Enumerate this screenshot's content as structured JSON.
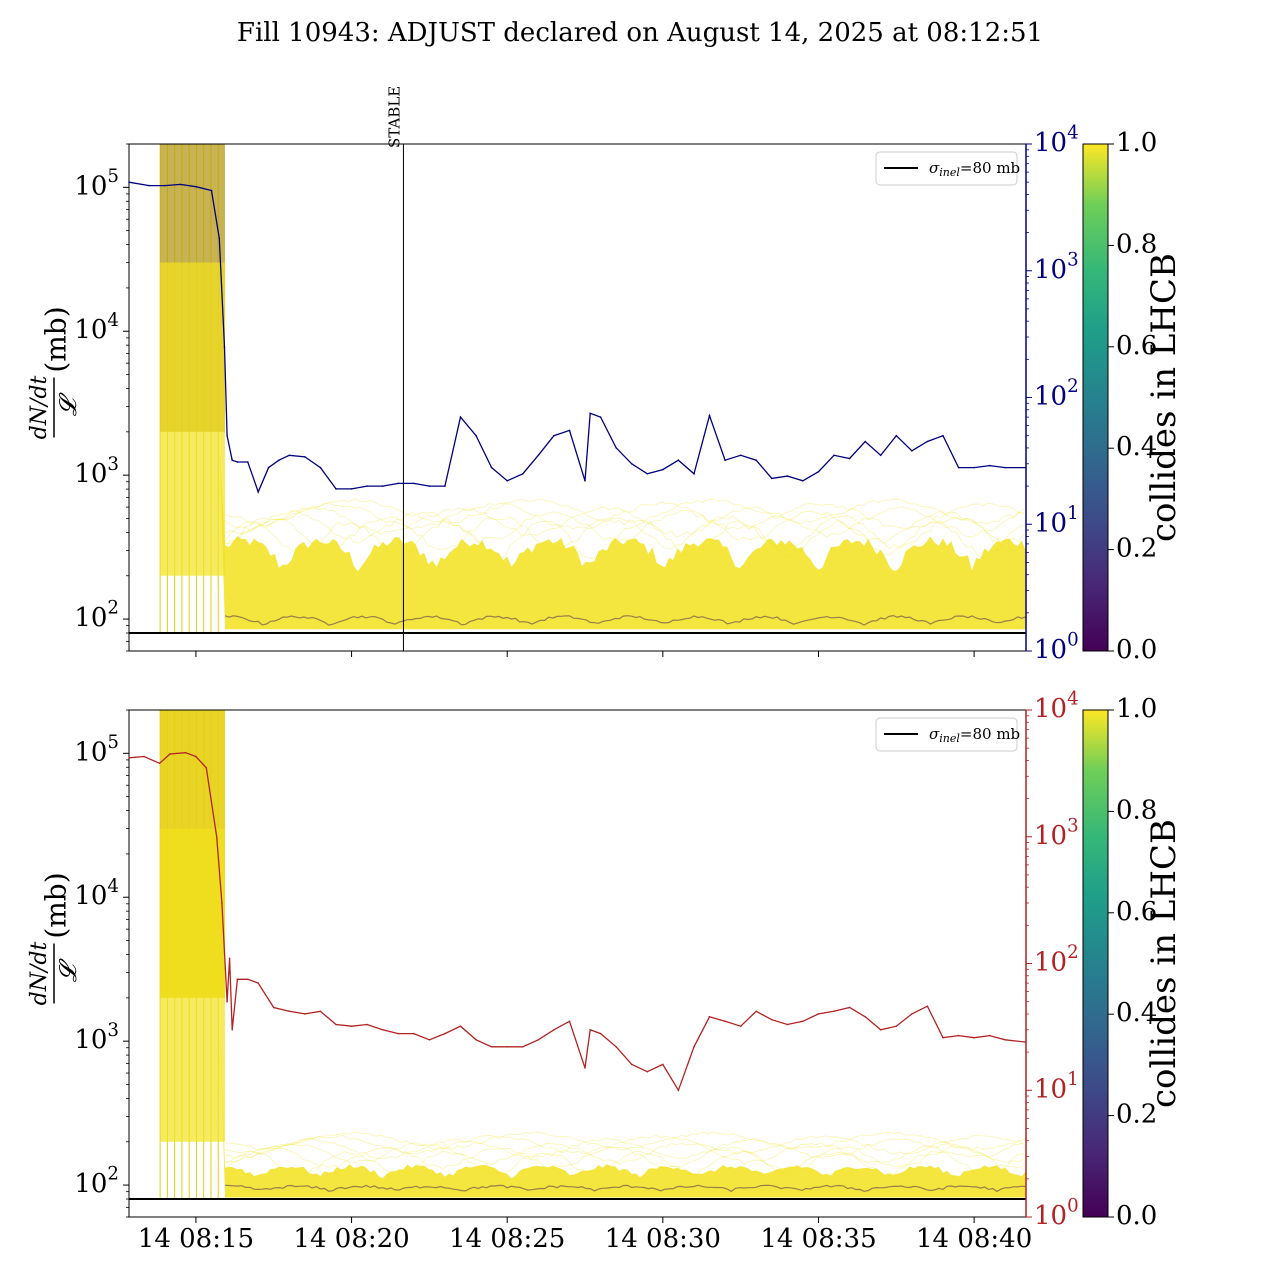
{
  "title": "Fill 10943: ADJUST declared on August 14, 2025 at 08:12:51",
  "colors": {
    "top_line": "#000080",
    "bottom_line": "#b22222",
    "band": "#f2e21c",
    "band_dark": "#5a3a4f",
    "reference_line": "#000000"
  },
  "chart_data": [
    {
      "type": "line",
      "panel": "top",
      "ylabel_left": "dN/dt / 𝓛 (mb)",
      "ylim_left": [
        60,
        200000
      ],
      "yscale_left": "log",
      "ylim_right": [
        1,
        10000
      ],
      "yscale_right": "log",
      "right_axis_color": "#000080",
      "yticks_left": [
        "10^2",
        "10^3",
        "10^4",
        "10^5"
      ],
      "yticks_right": [
        "10^0",
        "10^1",
        "10^2",
        "10^3",
        "10^4"
      ],
      "xlim": [
        "2025-08-14 08:12:51",
        "2025-08-14 08:41:40"
      ],
      "xticks": [
        "14 08:15",
        "14 08:20",
        "14 08:25",
        "14 08:30",
        "14 08:35",
        "14 08:40"
      ],
      "show_xtick_labels": false,
      "legend": {
        "label": "σ_inel=80 mb",
        "placement": "upper right"
      },
      "reference_line_value": 80,
      "annotation": {
        "text": "STABLE",
        "x": "2025-08-14 08:21:40"
      },
      "colorbar": {
        "label": "collides in LHCB",
        "range": [
          0.0,
          1.0
        ],
        "ticks": [
          "0.0",
          "0.2",
          "0.4",
          "0.6",
          "0.8",
          "1.0"
        ],
        "colormap": "viridis"
      },
      "series": [
        {
          "axis": "right",
          "color": "#000080",
          "x": [
            "08:12:51",
            "08:13:30",
            "08:14:00",
            "08:14:30",
            "08:15:00",
            "08:15:30",
            "08:15:45",
            "08:15:55",
            "08:16:00",
            "08:16:10",
            "08:16:20",
            "08:16:40",
            "08:17:00",
            "08:17:20",
            "08:17:40",
            "08:18:00",
            "08:18:30",
            "08:19:00",
            "08:19:30",
            "08:20:00",
            "08:20:30",
            "08:21:00",
            "08:21:30",
            "08:22:00",
            "08:22:30",
            "08:23:00",
            "08:23:30",
            "08:24:00",
            "08:24:30",
            "08:25:00",
            "08:25:30",
            "08:26:00",
            "08:26:30",
            "08:27:00",
            "08:27:30",
            "08:27:40",
            "08:28:00",
            "08:28:30",
            "08:29:00",
            "08:29:30",
            "08:30:00",
            "08:30:30",
            "08:31:00",
            "08:31:30",
            "08:32:00",
            "08:32:30",
            "08:33:00",
            "08:33:30",
            "08:34:00",
            "08:34:30",
            "08:35:00",
            "08:35:30",
            "08:36:00",
            "08:36:30",
            "08:37:00",
            "08:37:30",
            "08:38:00",
            "08:38:30",
            "08:39:00",
            "08:39:30",
            "08:40:00",
            "08:40:30",
            "08:41:00",
            "08:41:40"
          ],
          "y": [
            5000,
            4700,
            4700,
            4800,
            4600,
            4300,
            1800,
            250,
            50,
            32,
            31,
            31,
            18,
            28,
            32,
            35,
            34,
            28,
            19,
            19,
            20,
            20,
            21,
            21,
            20,
            20,
            70,
            50,
            28,
            22,
            25,
            35,
            50,
            55,
            22,
            75,
            70,
            40,
            30,
            25,
            27,
            32,
            25,
            72,
            32,
            35,
            32,
            23,
            24,
            22,
            26,
            35,
            33,
            45,
            35,
            50,
            38,
            45,
            50,
            28,
            28,
            29,
            28,
            28
          ]
        }
      ]
    },
    {
      "type": "line",
      "panel": "bottom",
      "ylabel_left": "dN/dt / 𝓛 (mb)",
      "ylim_left": [
        60,
        200000
      ],
      "yscale_left": "log",
      "ylim_right": [
        1,
        10000
      ],
      "yscale_right": "log",
      "right_axis_color": "#b22222",
      "yticks_left": [
        "10^2",
        "10^3",
        "10^4",
        "10^5"
      ],
      "yticks_right": [
        "10^0",
        "10^1",
        "10^2",
        "10^3",
        "10^4"
      ],
      "xlim": [
        "2025-08-14 08:12:51",
        "2025-08-14 08:41:40"
      ],
      "xticks": [
        "14 08:15",
        "14 08:20",
        "14 08:25",
        "14 08:30",
        "14 08:35",
        "14 08:40"
      ],
      "show_xtick_labels": true,
      "legend": {
        "label": "σ_inel=80 mb",
        "placement": "upper right"
      },
      "reference_line_value": 80,
      "colorbar": {
        "label": "collides in LHCB",
        "range": [
          0.0,
          1.0
        ],
        "ticks": [
          "0.0",
          "0.2",
          "0.4",
          "0.6",
          "0.8",
          "1.0"
        ],
        "colormap": "viridis"
      },
      "series": [
        {
          "axis": "right",
          "color": "#b22222",
          "x": [
            "08:12:51",
            "08:13:20",
            "08:13:50",
            "08:14:10",
            "08:14:40",
            "08:15:00",
            "08:15:20",
            "08:15:40",
            "08:15:50",
            "08:16:00",
            "08:16:05",
            "08:16:10",
            "08:16:20",
            "08:16:40",
            "08:17:00",
            "08:17:30",
            "08:18:00",
            "08:18:30",
            "08:19:00",
            "08:19:30",
            "08:20:00",
            "08:20:30",
            "08:21:00",
            "08:21:30",
            "08:22:00",
            "08:22:30",
            "08:23:00",
            "08:23:30",
            "08:24:00",
            "08:24:30",
            "08:25:00",
            "08:25:30",
            "08:26:00",
            "08:26:30",
            "08:27:00",
            "08:27:30",
            "08:27:40",
            "08:28:00",
            "08:28:30",
            "08:29:00",
            "08:29:30",
            "08:30:00",
            "08:30:30",
            "08:31:00",
            "08:31:30",
            "08:32:00",
            "08:32:30",
            "08:33:00",
            "08:33:30",
            "08:34:00",
            "08:34:30",
            "08:35:00",
            "08:35:30",
            "08:36:00",
            "08:36:30",
            "08:37:00",
            "08:37:30",
            "08:38:00",
            "08:38:30",
            "08:39:00",
            "08:39:30",
            "08:40:00",
            "08:40:30",
            "08:41:00",
            "08:41:40"
          ],
          "y": [
            4200,
            4300,
            3800,
            4500,
            4600,
            4300,
            3500,
            1000,
            300,
            50,
            110,
            30,
            75,
            75,
            70,
            45,
            42,
            40,
            42,
            33,
            32,
            33,
            30,
            28,
            28,
            25,
            28,
            32,
            25,
            22,
            22,
            22,
            25,
            30,
            35,
            15,
            30,
            28,
            22,
            16,
            14,
            16,
            10,
            22,
            38,
            35,
            32,
            42,
            36,
            33,
            35,
            40,
            42,
            45,
            38,
            30,
            32,
            40,
            46,
            26,
            27,
            26,
            27,
            25,
            24
          ]
        }
      ]
    }
  ]
}
